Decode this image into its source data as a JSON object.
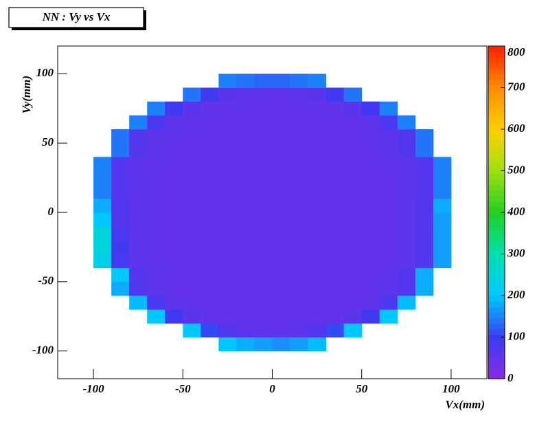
{
  "chart_data": {
    "type": "heatmap",
    "title": "NN : Vy vs Vx",
    "xlabel": "Vx(mm)",
    "ylabel": "Vy(mm)",
    "xlim": [
      -120,
      120
    ],
    "ylim": [
      -120,
      120
    ],
    "xticks": [
      -100,
      -50,
      0,
      50,
      100
    ],
    "yticks": [
      -100,
      -50,
      0,
      50,
      100
    ],
    "zlim": [
      0,
      800
    ],
    "zticks": [
      0,
      100,
      200,
      300,
      400,
      500,
      600,
      700,
      800
    ],
    "palette": [
      "#8a2be2",
      "#3a3cf5",
      "#00c8ff",
      "#00e0b0",
      "#20d020",
      "#a0e010",
      "#ffd000",
      "#ff8c00",
      "#ff2000"
    ],
    "x_edges": [
      -110,
      -100,
      -90,
      -80,
      -70,
      -60,
      -50,
      -40,
      -30,
      -20,
      -10,
      0,
      10,
      20,
      30,
      40,
      50,
      60,
      70,
      80,
      90,
      100,
      110
    ],
    "y_edges": [
      -110,
      -100,
      -90,
      -80,
      -70,
      -60,
      -50,
      -40,
      -30,
      -20,
      -10,
      0,
      10,
      20,
      30,
      40,
      50,
      60,
      70,
      80,
      90,
      100,
      110
    ],
    "z": [
      [
        null,
        null,
        null,
        null,
        null,
        null,
        null,
        null,
        null,
        null,
        null,
        null,
        null,
        null,
        null,
        null,
        null,
        null,
        null,
        null,
        null,
        null
      ],
      [
        null,
        null,
        null,
        null,
        null,
        null,
        null,
        null,
        200,
        180,
        170,
        160,
        170,
        190,
        null,
        null,
        null,
        null,
        null,
        null,
        null,
        null
      ],
      [
        null,
        null,
        null,
        null,
        null,
        null,
        200,
        110,
        70,
        55,
        50,
        50,
        55,
        70,
        110,
        200,
        null,
        null,
        null,
        null,
        null,
        null
      ],
      [
        null,
        null,
        null,
        null,
        200,
        90,
        60,
        50,
        50,
        50,
        50,
        50,
        50,
        50,
        50,
        60,
        90,
        200,
        null,
        null,
        null,
        null
      ],
      [
        null,
        null,
        null,
        190,
        80,
        55,
        50,
        50,
        50,
        50,
        50,
        50,
        50,
        50,
        50,
        50,
        55,
        80,
        190,
        null,
        null,
        null
      ],
      [
        null,
        null,
        180,
        70,
        55,
        50,
        50,
        50,
        50,
        50,
        50,
        50,
        50,
        50,
        50,
        50,
        50,
        55,
        70,
        180,
        null,
        null
      ],
      [
        null,
        null,
        200,
        70,
        55,
        50,
        50,
        50,
        50,
        50,
        50,
        50,
        50,
        50,
        50,
        50,
        50,
        55,
        70,
        180,
        null,
        null
      ],
      [
        null,
        230,
        80,
        55,
        50,
        50,
        50,
        50,
        50,
        50,
        50,
        50,
        50,
        50,
        50,
        50,
        50,
        50,
        55,
        70,
        170,
        null
      ],
      [
        null,
        250,
        90,
        55,
        50,
        50,
        50,
        50,
        50,
        50,
        50,
        50,
        50,
        50,
        50,
        50,
        50,
        50,
        55,
        70,
        170,
        null
      ],
      [
        null,
        250,
        80,
        55,
        50,
        50,
        50,
        50,
        50,
        50,
        50,
        50,
        50,
        50,
        50,
        50,
        50,
        50,
        55,
        70,
        170,
        null
      ],
      [
        null,
        200,
        70,
        55,
        50,
        50,
        50,
        50,
        50,
        50,
        50,
        50,
        50,
        50,
        50,
        50,
        50,
        50,
        55,
        70,
        170,
        null
      ],
      [
        null,
        180,
        70,
        55,
        50,
        50,
        50,
        50,
        50,
        50,
        50,
        50,
        50,
        50,
        50,
        50,
        50,
        50,
        55,
        70,
        180,
        null
      ],
      [
        null,
        150,
        65,
        55,
        50,
        50,
        50,
        50,
        50,
        50,
        50,
        50,
        50,
        50,
        50,
        50,
        50,
        50,
        55,
        65,
        150,
        null
      ],
      [
        null,
        150,
        65,
        55,
        50,
        50,
        50,
        50,
        50,
        50,
        50,
        50,
        50,
        50,
        50,
        50,
        50,
        50,
        55,
        65,
        150,
        null
      ],
      [
        null,
        150,
        65,
        55,
        50,
        50,
        50,
        50,
        50,
        50,
        50,
        50,
        50,
        50,
        50,
        50,
        50,
        50,
        55,
        65,
        150,
        null
      ],
      [
        null,
        null,
        140,
        70,
        55,
        50,
        50,
        50,
        50,
        50,
        50,
        50,
        50,
        50,
        50,
        50,
        50,
        55,
        70,
        140,
        null,
        null
      ],
      [
        null,
        null,
        140,
        70,
        55,
        50,
        50,
        50,
        50,
        50,
        50,
        50,
        50,
        50,
        50,
        50,
        50,
        55,
        70,
        140,
        null,
        null
      ],
      [
        null,
        null,
        null,
        150,
        80,
        55,
        50,
        50,
        50,
        50,
        50,
        50,
        50,
        50,
        50,
        50,
        55,
        80,
        150,
        null,
        null,
        null
      ],
      [
        null,
        null,
        null,
        null,
        150,
        90,
        60,
        50,
        50,
        50,
        50,
        50,
        50,
        50,
        50,
        60,
        90,
        150,
        null,
        null,
        null,
        null
      ],
      [
        null,
        null,
        null,
        null,
        null,
        null,
        140,
        90,
        60,
        55,
        50,
        50,
        55,
        60,
        90,
        140,
        null,
        null,
        null,
        null,
        null,
        null
      ],
      [
        null,
        null,
        null,
        null,
        null,
        null,
        null,
        null,
        150,
        140,
        130,
        130,
        140,
        150,
        null,
        null,
        null,
        null,
        null,
        null,
        null,
        null
      ],
      [
        null,
        null,
        null,
        null,
        null,
        null,
        null,
        null,
        null,
        null,
        null,
        null,
        null,
        null,
        null,
        null,
        null,
        null,
        null,
        null,
        null,
        null
      ]
    ]
  }
}
